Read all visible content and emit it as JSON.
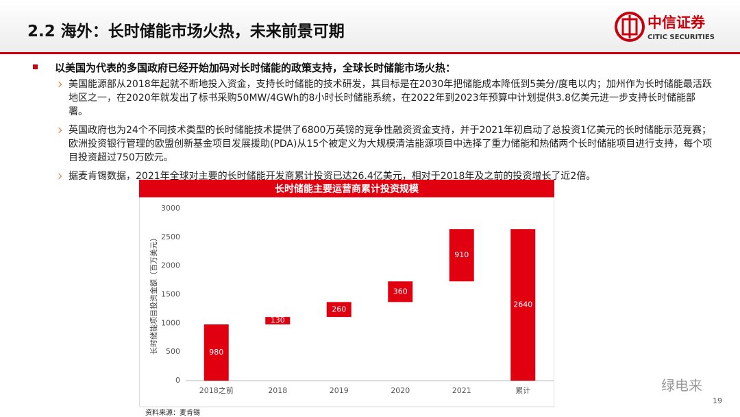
{
  "header": {
    "title": "2.2 海外：长时储能市场火热，未来前景可期",
    "logo_cn": "中信证券",
    "logo_en": "CITIC SECURITIES"
  },
  "main_bullet": "以美国为代表的多国政府已经开始加码对长时储能的政策支持，全球长时储能市场火热：",
  "sub_bullets": [
    "美国能源部从2018年起就不断地投入资金，支持长时储能的技术研发，其目标是在2030年把储能成本降低到5美分/度电以内；加州作为长时储能最活跃地区之一，在2020年就发出了标书采购50MW/4GWh的8小时长时储能系统，在2022年到2023年预算中计划提供3.8亿美元进一步支持长时储能部署。",
    "英国政府也为24个不同技术类型的长时储能技术提供了6800万英镑的竞争性融资资金支持，并于2021年初启动了总投资1亿美元的长时储能示范竞赛；欧洲投资银行管理的欧盟创新基金项目发展援助(PDA)从15个被定义为大规模清洁能源项目中选择了重力储能和热储两个长时储能项目进行支持，每个项目投资超过750万欧元。",
    "据麦肯锡数据，2021年全球对主要的长时储能开发商累计投资已达26.4亿美元，相对于2018年及之前的投资增长了近2倍。"
  ],
  "chart_data": {
    "type": "waterfall",
    "title": "长时储能主要运营商累计投资规模",
    "y_label": "长时储能项目投资金额（百万美元）",
    "categories": [
      "2018之前",
      "2018",
      "2019",
      "2020",
      "2021",
      "累计"
    ],
    "values": [
      980,
      130,
      260,
      360,
      910,
      2640
    ],
    "last_is_total": true,
    "color": "#e1000f",
    "ylim": [
      0,
      3000
    ],
    "yticks": [
      0,
      500,
      1000,
      1500,
      2000,
      2500,
      3000
    ],
    "grid": false
  },
  "source": "资料来源：麦肯锡",
  "page_number": "19",
  "watermark": "绿电来"
}
